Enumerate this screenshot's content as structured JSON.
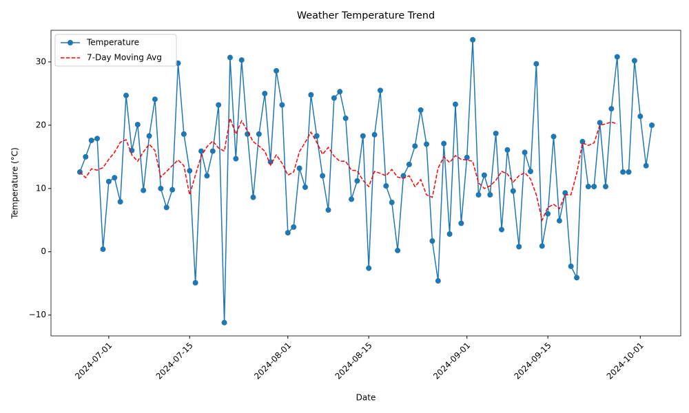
{
  "chart_data": {
    "type": "line",
    "title": "Weather Temperature Trend",
    "x_label": "Date",
    "y_label": "Temperature (°C)",
    "x": [
      "2024-06-26",
      "2024-06-27",
      "2024-06-28",
      "2024-06-29",
      "2024-06-30",
      "2024-07-01",
      "2024-07-02",
      "2024-07-03",
      "2024-07-04",
      "2024-07-05",
      "2024-07-06",
      "2024-07-07",
      "2024-07-08",
      "2024-07-09",
      "2024-07-10",
      "2024-07-11",
      "2024-07-12",
      "2024-07-13",
      "2024-07-14",
      "2024-07-15",
      "2024-07-16",
      "2024-07-17",
      "2024-07-18",
      "2024-07-19",
      "2024-07-20",
      "2024-07-21",
      "2024-07-22",
      "2024-07-23",
      "2024-07-24",
      "2024-07-25",
      "2024-07-26",
      "2024-07-27",
      "2024-07-28",
      "2024-07-29",
      "2024-07-30",
      "2024-07-31",
      "2024-08-01",
      "2024-08-02",
      "2024-08-03",
      "2024-08-04",
      "2024-08-05",
      "2024-08-06",
      "2024-08-07",
      "2024-08-08",
      "2024-08-09",
      "2024-08-10",
      "2024-08-11",
      "2024-08-12",
      "2024-08-13",
      "2024-08-14",
      "2024-08-15",
      "2024-08-16",
      "2024-08-17",
      "2024-08-18",
      "2024-08-19",
      "2024-08-20",
      "2024-08-21",
      "2024-08-22",
      "2024-08-23",
      "2024-08-24",
      "2024-08-25",
      "2024-08-26",
      "2024-08-27",
      "2024-08-28",
      "2024-08-29",
      "2024-08-30",
      "2024-08-31",
      "2024-09-01",
      "2024-09-02",
      "2024-09-03",
      "2024-09-04",
      "2024-09-05",
      "2024-09-06",
      "2024-09-07",
      "2024-09-08",
      "2024-09-09",
      "2024-09-10",
      "2024-09-11",
      "2024-09-12",
      "2024-09-13",
      "2024-09-14",
      "2024-09-15",
      "2024-09-16",
      "2024-09-17",
      "2024-09-18",
      "2024-09-19",
      "2024-09-20",
      "2024-09-21",
      "2024-09-22",
      "2024-09-23",
      "2024-09-24",
      "2024-09-25",
      "2024-09-26",
      "2024-09-27",
      "2024-09-28",
      "2024-09-29",
      "2024-09-30",
      "2024-10-01",
      "2024-10-02",
      "2024-10-03"
    ],
    "series": [
      {
        "name": "Temperature",
        "color": "#1f77b4",
        "style": "solid",
        "marker": "o",
        "values": [
          12.6,
          15.0,
          17.6,
          17.9,
          0.4,
          11.1,
          11.7,
          7.9,
          24.7,
          16.0,
          20.1,
          9.7,
          18.3,
          24.1,
          10.0,
          7.0,
          9.8,
          29.8,
          18.6,
          12.8,
          -4.9,
          15.9,
          12.0,
          15.9,
          23.2,
          -11.2,
          30.7,
          14.7,
          30.3,
          18.6,
          8.6,
          18.6,
          25.0,
          14.2,
          28.6,
          23.2,
          3.0,
          3.9,
          13.2,
          10.2,
          24.8,
          18.3,
          12.0,
          6.6,
          24.3,
          25.3,
          21.1,
          8.3,
          11.2,
          18.3,
          -2.6,
          18.5,
          25.5,
          10.4,
          7.8,
          0.2,
          12.0,
          13.8,
          16.7,
          22.4,
          17.0,
          1.7,
          -4.6,
          17.1,
          2.8,
          23.3,
          4.5,
          14.9,
          33.5,
          9.0,
          12.1,
          9.0,
          18.7,
          3.5,
          16.1,
          9.6,
          0.8,
          15.7,
          12.7,
          29.7,
          0.9,
          6.0,
          18.2,
          4.9,
          9.3,
          -2.3,
          -4.1,
          17.4,
          10.3,
          10.3,
          20.4,
          10.3,
          22.6,
          30.8,
          12.6,
          12.6,
          30.2,
          21.4,
          13.6,
          20.0
        ]
      },
      {
        "name": "7-Day Moving Avg",
        "color": "#ff0000",
        "style": "dashed",
        "values": [
          12.6,
          11.7,
          13.1,
          12.9,
          13.3,
          14.6,
          15.7,
          17.3,
          17.7,
          15.3,
          14.3,
          15.8,
          17.0,
          16.0,
          11.8,
          12.7,
          13.6,
          14.5,
          13.6,
          9.0,
          12.1,
          15.1,
          16.6,
          17.5,
          16.4,
          15.9,
          21.1,
          18.6,
          20.7,
          19.1,
          17.4,
          16.7,
          15.9,
          13.7,
          15.3,
          14.0,
          12.1,
          12.6,
          15.8,
          17.3,
          18.9,
          17.3,
          15.4,
          16.5,
          15.1,
          14.3,
          14.3,
          12.9,
          12.8,
          11.3,
          10.3,
          12.7,
          12.4,
          12.0,
          13.0,
          11.8,
          11.6,
          12.0,
          10.3,
          11.4,
          9.0,
          8.6,
          13.2,
          15.0,
          14.1,
          15.2,
          14.6,
          14.5,
          14.3,
          10.9,
          10.0,
          10.4,
          11.3,
          12.7,
          12.3,
          11.0,
          12.0,
          12.5,
          11.5,
          9.0,
          5.0,
          7.0,
          7.5,
          6.8,
          9.0,
          9.0,
          12.4,
          17.2,
          16.8,
          17.2,
          20.0,
          20.2,
          20.5,
          20.2,
          null,
          null,
          null,
          null,
          null,
          null
        ]
      }
    ],
    "xlim": [
      "2024-06-21",
      "2024-10-08"
    ],
    "xticks": [
      "2024-07-01",
      "2024-07-15",
      "2024-08-01",
      "2024-08-15",
      "2024-09-01",
      "2024-09-15",
      "2024-10-01"
    ],
    "ylim": [
      -13.3,
      35
    ],
    "yticks": [
      {
        "value": -10,
        "label": "−10"
      },
      0,
      10,
      20,
      30
    ],
    "grid": false,
    "legend": "upper left"
  }
}
